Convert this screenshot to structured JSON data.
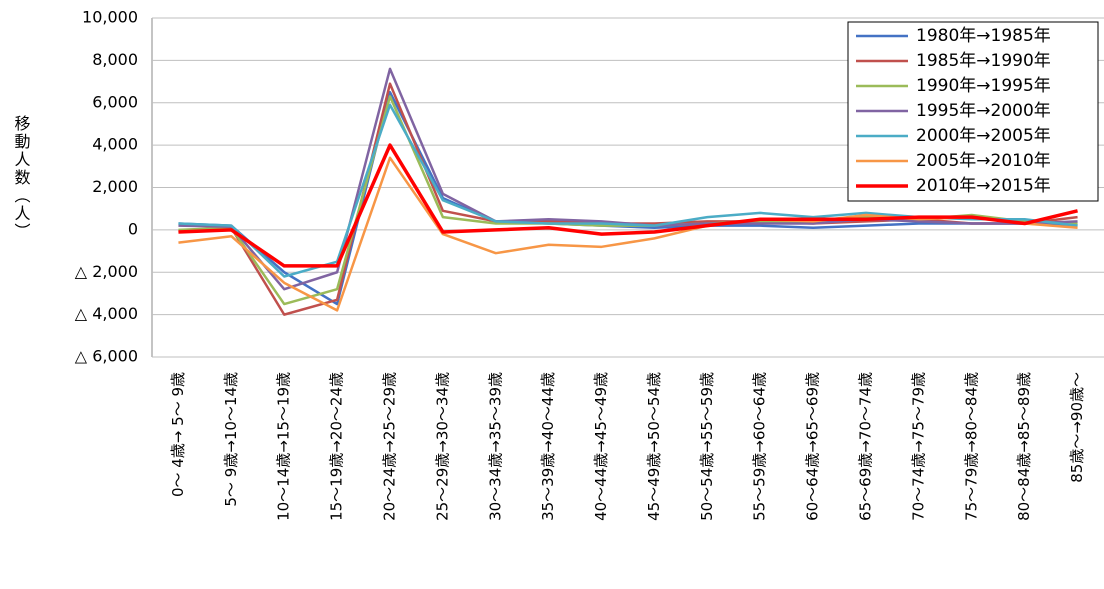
{
  "chart_data": {
    "type": "line",
    "y_label": "移動人数（人）",
    "categories": [
      "0～ 4歳→ 5～ 9歳",
      "5～ 9歳→10～14歳",
      "10～14歳→15～19歳",
      "15～19歳→20～24歳",
      "20～24歳→25～29歳",
      "25～29歳→30～34歳",
      "30～34歳→35～39歳",
      "35～39歳→40～44歳",
      "40～44歳→45～49歳",
      "45～49歳→50～54歳",
      "50～54歳→55～59歳",
      "55～59歳→60～64歳",
      "60～64歳→65～69歳",
      "65～69歳→70～74歳",
      "70～74歳→75～79歳",
      "75～79歳→80～84歳",
      "80～84歳→85～89歳",
      "85歳～→90歳～"
    ],
    "series": [
      {
        "name": "1980年→1985年",
        "color": "#4472c4",
        "values": [
          300,
          200,
          -2000,
          -3500,
          6500,
          1500,
          400,
          300,
          200,
          100,
          200,
          200,
          100,
          200,
          300,
          300,
          300,
          200
        ]
      },
      {
        "name": "1985年→1990年",
        "color": "#c0504d",
        "values": [
          -100,
          100,
          -4000,
          -3300,
          6900,
          900,
          400,
          400,
          300,
          300,
          400,
          400,
          300,
          400,
          500,
          300,
          300,
          600
        ]
      },
      {
        "name": "1990年→1995年",
        "color": "#9bbb59",
        "values": [
          0,
          100,
          -3500,
          -2800,
          6300,
          600,
          300,
          300,
          200,
          200,
          300,
          400,
          400,
          600,
          500,
          700,
          400,
          300
        ]
      },
      {
        "name": "1995年→2000年",
        "color": "#8064a2",
        "values": [
          200,
          150,
          -2800,
          -2000,
          7600,
          1700,
          400,
          500,
          400,
          200,
          300,
          300,
          300,
          500,
          400,
          300,
          300,
          400
        ]
      },
      {
        "name": "2000年→2005年",
        "color": "#4bacc6",
        "values": [
          300,
          200,
          -2200,
          -1500,
          5900,
          1400,
          400,
          300,
          300,
          200,
          600,
          800,
          600,
          800,
          600,
          500,
          500,
          200
        ]
      },
      {
        "name": "2005年→2010年",
        "color": "#f79646",
        "values": [
          -600,
          -300,
          -2500,
          -3800,
          3400,
          -200,
          -1100,
          -700,
          -800,
          -400,
          200,
          500,
          400,
          700,
          500,
          600,
          300,
          100
        ]
      },
      {
        "name": "2010年→2015年",
        "color": "#ff0000",
        "values": [
          -100,
          0,
          -1700,
          -1700,
          4000,
          -100,
          0,
          100,
          -200,
          -100,
          200,
          500,
          500,
          500,
          600,
          600,
          300,
          900
        ]
      }
    ],
    "ylim": [
      -6000,
      10000
    ],
    "yticks": [
      {
        "value": -6000,
        "label": "△ 6,000"
      },
      {
        "value": -4000,
        "label": "△ 4,000"
      },
      {
        "value": -2000,
        "label": "△ 2,000"
      },
      0,
      {
        "value": 2000,
        "label": "2,000"
      },
      {
        "value": 4000,
        "label": "4,000"
      },
      {
        "value": 6000,
        "label": "6,000"
      },
      {
        "value": 8000,
        "label": "8,000"
      },
      {
        "value": 10000,
        "label": "10,000"
      }
    ],
    "grid": true,
    "legend": "upper-right"
  }
}
